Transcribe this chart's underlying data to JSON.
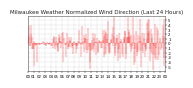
{
  "title": "Milwaukee Weather Normalized Wind Direction (Last 24 Hours)",
  "line_color": "#ff0000",
  "bg_color": "#ffffff",
  "grid_color": "#999999",
  "ylim": [
    -6,
    6
  ],
  "num_points": 288,
  "seed": 42,
  "title_fontsize": 4.0,
  "tick_fontsize": 2.8,
  "yticks": [
    -5,
    -4,
    -3,
    -2,
    -1,
    0,
    1,
    2,
    3,
    4,
    5
  ],
  "ytick_labels": [
    "-5",
    "-4",
    "-3",
    "-2",
    "-1",
    "0",
    "1",
    "2",
    "3",
    "4",
    "5"
  ]
}
